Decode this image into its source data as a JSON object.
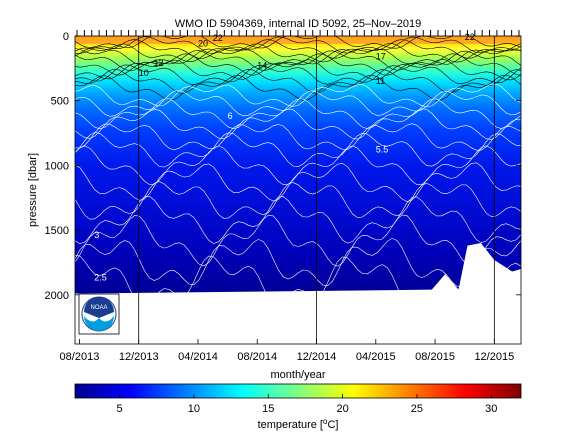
{
  "chart_data": {
    "type": "heatmap",
    "title": "WMO ID 5904369, internal ID 5092, 25–Nov–2019",
    "xlabel": "month/year",
    "ylabel": "pressure [dbar]",
    "colorbar_label": "temperature [°C]",
    "x_ticks": [
      "08/2013",
      "12/2013",
      "04/2014",
      "08/2014",
      "12/2014",
      "04/2015",
      "08/2015",
      "12/2015"
    ],
    "y_ticks": [
      "0",
      "500",
      "1000",
      "1500",
      "2000"
    ],
    "ylim": [
      0,
      2380
    ],
    "y_reversed": true,
    "colorbar_ticks": [
      "5",
      "10",
      "15",
      "20",
      "25",
      "30"
    ],
    "colorbar_range": [
      2,
      32
    ],
    "colormap": "jet",
    "year_markers": [
      "12/2013",
      "12/2014",
      "12/2015"
    ],
    "contour_labels": [
      {
        "text": "22",
        "x": "05/2014",
        "p": 40
      },
      {
        "text": "20",
        "x": "04/2014",
        "p": 80
      },
      {
        "text": "12",
        "x": "01/2014",
        "p": 230
      },
      {
        "text": "10",
        "x": "12/2013",
        "p": 310
      },
      {
        "text": "14",
        "x": "08/2014",
        "p": 250
      },
      {
        "text": "17",
        "x": "04/2015",
        "p": 180
      },
      {
        "text": "11",
        "x": "04/2015",
        "p": 370
      },
      {
        "text": "6",
        "x": "06/2014",
        "p": 640
      },
      {
        "text": "5.5",
        "x": "04/2015",
        "p": 900
      },
      {
        "text": "3",
        "x": "09/2013",
        "p": 1560
      },
      {
        "text": "2.5",
        "x": "09/2013",
        "p": 1890
      },
      {
        "text": "22",
        "x": "10/2015",
        "p": 30
      }
    ],
    "noaa_logo_text": "NOAA"
  }
}
